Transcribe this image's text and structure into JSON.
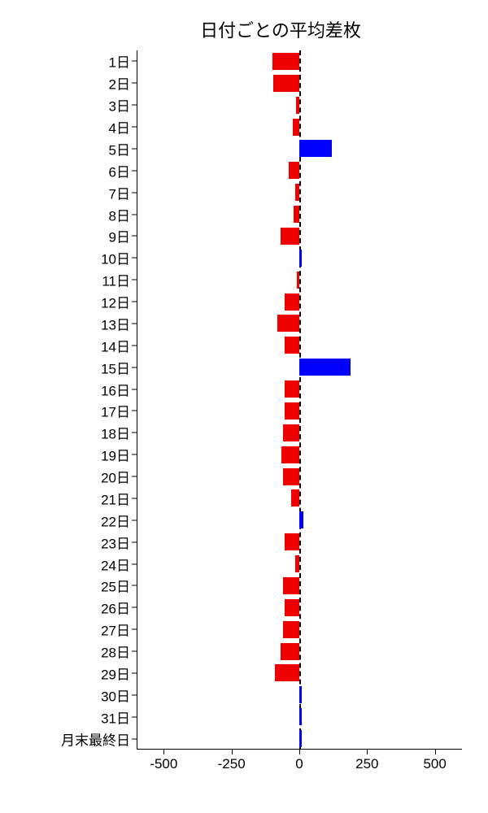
{
  "chart": {
    "type": "horizontal_bar",
    "title": "日付ごとの平均差枚",
    "title_fontsize": 22,
    "background_color": "#ffffff",
    "xlim": [
      -600,
      600
    ],
    "xticks": [
      -500,
      -250,
      0,
      250,
      500
    ],
    "xtick_labels": [
      "-500",
      "-250",
      "0",
      "250",
      "500"
    ],
    "axis_color": "#000000",
    "label_fontsize": 17,
    "bar_height_ratio": 0.78,
    "zero_line_style": "dashed",
    "zero_line_color": "#000000",
    "positive_color": "#0000ff",
    "negative_color": "#ee0000",
    "categories": [
      "1日",
      "2日",
      "3日",
      "4日",
      "5日",
      "6日",
      "7日",
      "8日",
      "9日",
      "10日",
      "11日",
      "12日",
      "13日",
      "14日",
      "15日",
      "16日",
      "17日",
      "18日",
      "19日",
      "20日",
      "21日",
      "22日",
      "23日",
      "24日",
      "25日",
      "26日",
      "27日",
      "28日",
      "29日",
      "30日",
      "31日",
      "月末最終日"
    ],
    "values": [
      -100,
      -95,
      -12,
      -25,
      120,
      -40,
      -15,
      -20,
      -70,
      8,
      -8,
      -55,
      -80,
      -55,
      190,
      -55,
      -55,
      -60,
      -65,
      -60,
      -30,
      15,
      -55,
      -15,
      -60,
      -55,
      -60,
      -70,
      -90,
      10,
      10,
      8
    ]
  }
}
